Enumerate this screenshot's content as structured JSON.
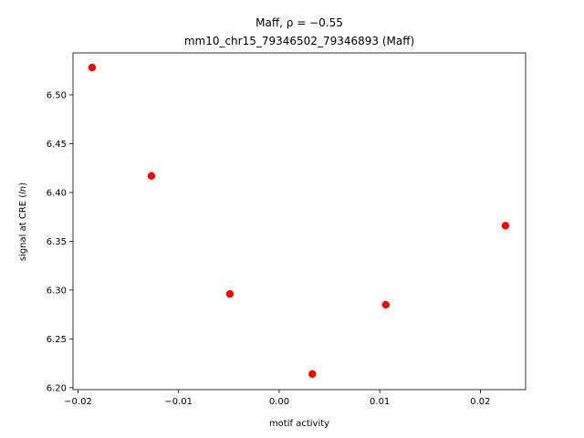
{
  "chart_data": {
    "type": "scatter",
    "title_line1": "Maff, ρ = −0.55",
    "title_line2": "mm10_chr15_79346502_79346893 (Maff)",
    "xlabel": "motif activity",
    "ylabel": "signal at CRE (ln)",
    "xlim": [
      -0.0205,
      0.0245
    ],
    "ylim": [
      6.198,
      6.543
    ],
    "xticks": [
      -0.02,
      -0.01,
      0.0,
      0.01,
      0.02
    ],
    "xtick_labels": [
      "−0.02",
      "−0.01",
      "0.00",
      "0.01",
      "0.02"
    ],
    "yticks": [
      6.2,
      6.25,
      6.3,
      6.35,
      6.4,
      6.45,
      6.5
    ],
    "ytick_labels": [
      "6.20",
      "6.25",
      "6.30",
      "6.35",
      "6.40",
      "6.45",
      "6.50"
    ],
    "points": [
      {
        "x": -0.0186,
        "y": 6.528
      },
      {
        "x": -0.0127,
        "y": 6.417
      },
      {
        "x": -0.0049,
        "y": 6.296
      },
      {
        "x": 0.0033,
        "y": 6.214
      },
      {
        "x": 0.0106,
        "y": 6.285
      },
      {
        "x": 0.0225,
        "y": 6.366
      }
    ],
    "marker_color": "#ff0000",
    "grid": false
  }
}
